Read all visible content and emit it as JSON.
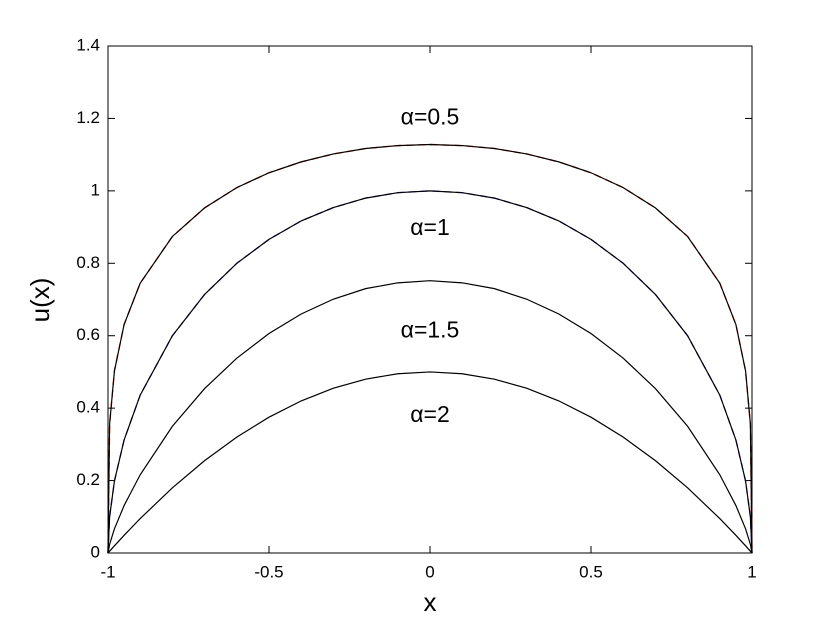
{
  "chart_data": {
    "type": "line",
    "xlabel": "x",
    "ylabel": "u(x)",
    "x": [
      -1,
      -0.995,
      -0.98,
      -0.95,
      -0.9,
      -0.8,
      -0.7,
      -0.6,
      -0.5,
      -0.4,
      -0.3,
      -0.2,
      -0.1,
      0,
      0.1,
      0.2,
      0.3,
      0.4,
      0.5,
      0.6,
      0.7,
      0.8,
      0.9,
      0.95,
      0.98,
      0.995,
      1
    ],
    "series": [
      {
        "name": "α=0.5",
        "color": "#000000",
        "dashed": false,
        "values": [
          0,
          0.356,
          0.503,
          0.631,
          0.745,
          0.874,
          0.953,
          1.009,
          1.05,
          1.08,
          1.102,
          1.117,
          1.125,
          1.128,
          1.125,
          1.117,
          1.102,
          1.08,
          1.05,
          1.009,
          0.953,
          0.874,
          0.745,
          0.631,
          0.503,
          0.356,
          0
        ]
      },
      {
        "name": "α=1",
        "color": "#000000",
        "dashed": false,
        "values": [
          0,
          0.0999,
          0.199,
          0.312,
          0.436,
          0.6,
          0.714,
          0.8,
          0.866,
          0.917,
          0.954,
          0.98,
          0.995,
          1,
          0.995,
          0.98,
          0.954,
          0.917,
          0.866,
          0.8,
          0.714,
          0.6,
          0.436,
          0.312,
          0.199,
          0.0999,
          0
        ]
      },
      {
        "name": "α=1.5",
        "color": "#000000",
        "dashed": false,
        "values": [
          0,
          0.0238,
          0.0668,
          0.131,
          0.216,
          0.35,
          0.454,
          0.538,
          0.606,
          0.66,
          0.701,
          0.73,
          0.746,
          0.752,
          0.746,
          0.73,
          0.701,
          0.66,
          0.606,
          0.538,
          0.454,
          0.35,
          0.216,
          0.131,
          0.0668,
          0.0238,
          0
        ]
      },
      {
        "name": "α=2",
        "color": "#000000",
        "dashed": false,
        "values": [
          0,
          0.00499,
          0.0198,
          0.0488,
          0.095,
          0.18,
          0.255,
          0.32,
          0.375,
          0.42,
          0.455,
          0.48,
          0.495,
          0.5,
          0.495,
          0.48,
          0.455,
          0.42,
          0.375,
          0.32,
          0.255,
          0.18,
          0.095,
          0.0488,
          0.0198,
          0.00499,
          0
        ]
      },
      {
        "color": "#e03020",
        "dashed": true,
        "values": [
          0,
          0.356,
          0.503,
          0.631,
          0.745,
          0.874,
          0.953,
          1.009,
          1.05,
          1.08,
          1.102,
          1.117,
          1.125,
          1.128,
          1.125,
          1.117,
          1.102,
          1.08,
          1.05,
          1.009,
          0.953,
          0.874,
          0.745,
          0.631,
          0.503,
          0.356,
          0
        ]
      },
      {
        "color": "#6a3fd0",
        "dashed": true,
        "values": [
          0,
          0.0999,
          0.199,
          0.312,
          0.436,
          0.6,
          0.714,
          0.8,
          0.866,
          0.917,
          0.954,
          0.98,
          0.995,
          1,
          0.995,
          0.98,
          0.954,
          0.917,
          0.866,
          0.8,
          0.714,
          0.6,
          0.436,
          0.312,
          0.199,
          0.0999,
          0
        ]
      }
    ],
    "xlim": [
      -1,
      1
    ],
    "xticks": [
      -1,
      -0.5,
      0,
      0.5,
      1
    ],
    "ylim": [
      0,
      1.4
    ],
    "yticks": [
      0,
      0.2,
      0.4,
      0.6,
      0.8,
      1,
      1.2,
      1.4
    ]
  }
}
